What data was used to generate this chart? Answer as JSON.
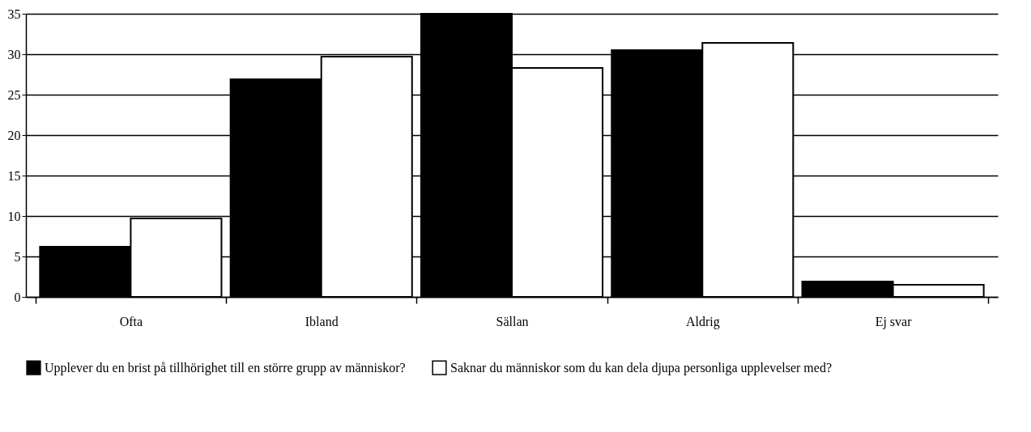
{
  "chart_data": {
    "type": "bar",
    "categories": [
      "Ofta",
      "Ibland",
      "Sällan",
      "Aldrig",
      "Ej svar"
    ],
    "series": [
      {
        "name": "Upplever du en brist på tillhörighet till en större grupp av människor?",
        "color": "#000000",
        "values": [
          6.2,
          26.9,
          35,
          30.5,
          1.9
        ]
      },
      {
        "name": "Saknar du människor som du kan dela djupa personliga upplevelser med?",
        "color": "#ffffff",
        "values": [
          9.7,
          29.7,
          28.3,
          31.4,
          1.5
        ]
      }
    ],
    "ylim": [
      0,
      35
    ],
    "yticks": [
      0,
      5,
      10,
      15,
      20,
      25,
      30,
      35
    ],
    "grid": "y",
    "legend": "bottom"
  }
}
